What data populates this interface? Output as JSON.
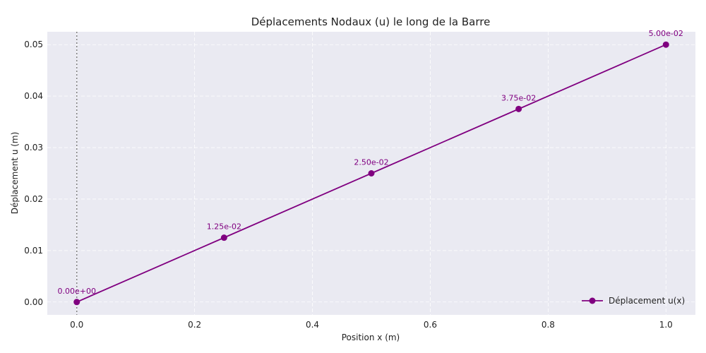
{
  "chart_data": {
    "type": "line",
    "title": "Déplacements Nodaux (u) le long de la Barre",
    "xlabel": "Position x (m)",
    "ylabel": "Déplacement u (m)",
    "xlim": [
      -0.05,
      1.05
    ],
    "ylim": [
      -0.0025,
      0.0525
    ],
    "xticks": [
      0.0,
      0.2,
      0.4,
      0.6,
      0.8,
      1.0
    ],
    "xtick_labels": [
      "0.0",
      "0.2",
      "0.4",
      "0.6",
      "0.8",
      "1.0"
    ],
    "yticks": [
      0.0,
      0.01,
      0.02,
      0.03,
      0.04,
      0.05
    ],
    "ytick_labels": [
      "0.00",
      "0.01",
      "0.02",
      "0.03",
      "0.04",
      "0.05"
    ],
    "grid": true,
    "legend_position": "lower-right",
    "reference_line": {
      "x": 0.0,
      "style": "dotted",
      "color": "#808080"
    },
    "series": [
      {
        "name": "Déplacement u(x)",
        "color": "#800080",
        "x": [
          0.0,
          0.25,
          0.5,
          0.75,
          1.0
        ],
        "values": [
          0.0,
          0.0125,
          0.025,
          0.0375,
          0.05
        ],
        "data_labels": [
          "0.00e+00",
          "1.25e-02",
          "2.50e-02",
          "3.75e-02",
          "5.00e-02"
        ]
      }
    ]
  }
}
